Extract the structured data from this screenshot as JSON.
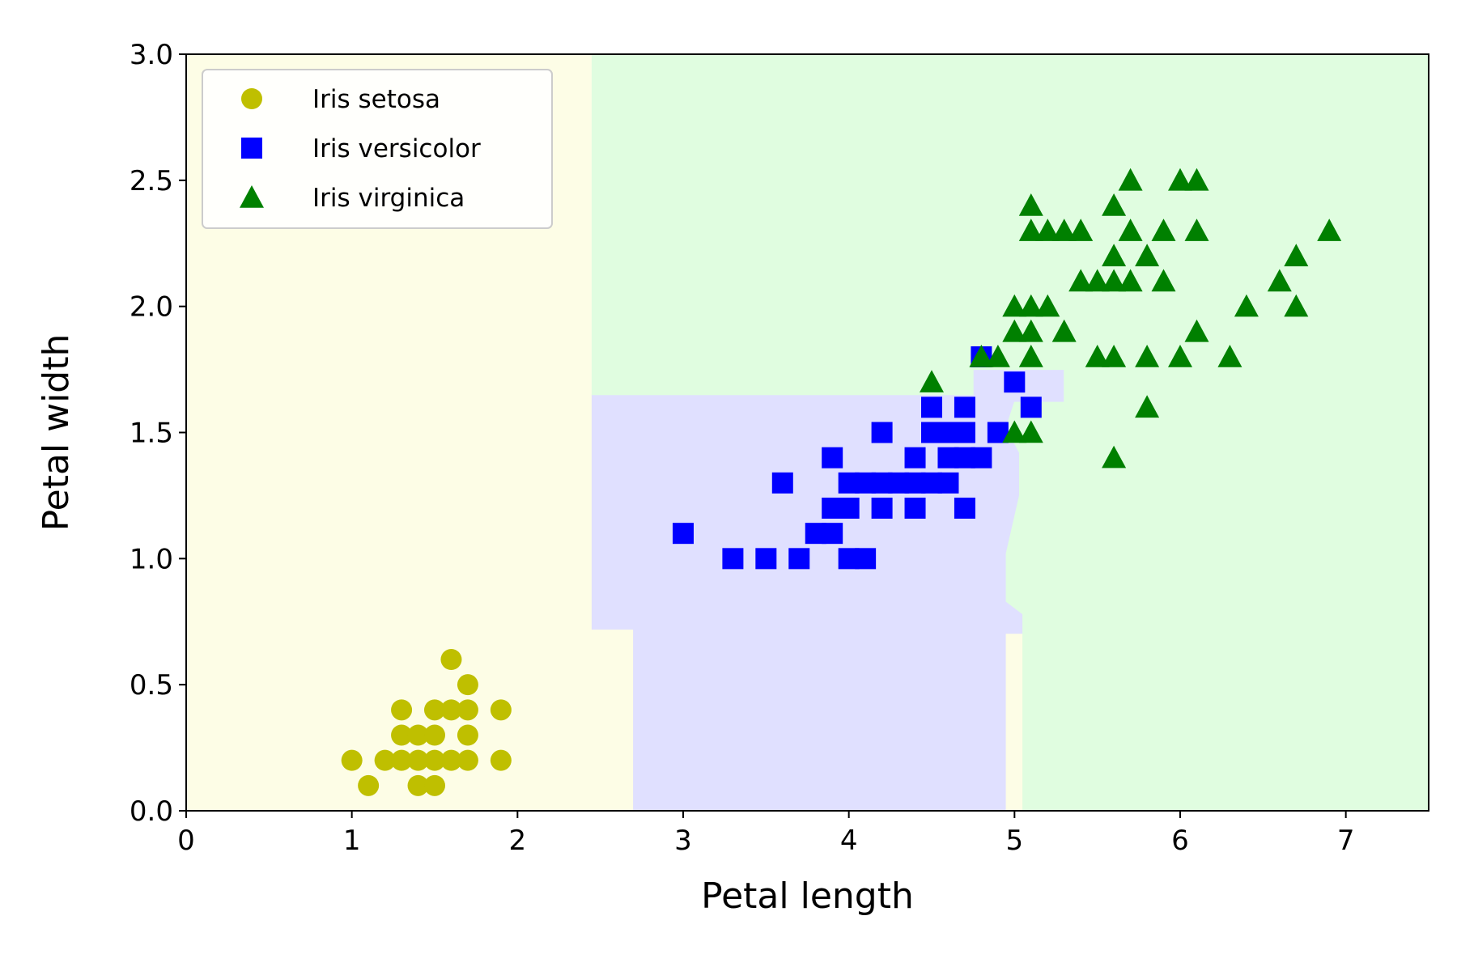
{
  "chart_data": {
    "type": "scatter",
    "title": "",
    "xlabel": "Petal length",
    "ylabel": "Petal width",
    "xlim": [
      0,
      7.5
    ],
    "ylim": [
      0,
      3.0
    ],
    "xticks": [
      0,
      1,
      2,
      3,
      4,
      5,
      6,
      7
    ],
    "yticks": [
      0.0,
      0.5,
      1.0,
      1.5,
      2.0,
      2.5,
      3.0
    ],
    "xtick_labels": [
      "0",
      "1",
      "2",
      "3",
      "4",
      "5",
      "6",
      "7"
    ],
    "ytick_labels": [
      "0.0",
      "0.5",
      "1.0",
      "1.5",
      "2.0",
      "2.5",
      "3.0"
    ],
    "grid": false,
    "legend_position": "top-left",
    "series": [
      {
        "name": "Iris setosa",
        "marker": "circle",
        "color": "#bfbf00",
        "points": [
          [
            1.0,
            0.2
          ],
          [
            1.1,
            0.1
          ],
          [
            1.2,
            0.2
          ],
          [
            1.3,
            0.2
          ],
          [
            1.3,
            0.3
          ],
          [
            1.3,
            0.4
          ],
          [
            1.4,
            0.1
          ],
          [
            1.4,
            0.2
          ],
          [
            1.4,
            0.3
          ],
          [
            1.5,
            0.1
          ],
          [
            1.5,
            0.2
          ],
          [
            1.5,
            0.3
          ],
          [
            1.5,
            0.4
          ],
          [
            1.6,
            0.2
          ],
          [
            1.6,
            0.4
          ],
          [
            1.6,
            0.6
          ],
          [
            1.7,
            0.2
          ],
          [
            1.7,
            0.3
          ],
          [
            1.7,
            0.4
          ],
          [
            1.7,
            0.5
          ],
          [
            1.9,
            0.2
          ],
          [
            1.9,
            0.4
          ]
        ]
      },
      {
        "name": "Iris versicolor",
        "marker": "square",
        "color": "#0000ff",
        "points": [
          [
            3.0,
            1.1
          ],
          [
            3.3,
            1.0
          ],
          [
            3.5,
            1.0
          ],
          [
            3.6,
            1.3
          ],
          [
            3.7,
            1.0
          ],
          [
            3.8,
            1.1
          ],
          [
            3.9,
            1.1
          ],
          [
            3.9,
            1.2
          ],
          [
            3.9,
            1.4
          ],
          [
            4.0,
            1.0
          ],
          [
            4.0,
            1.2
          ],
          [
            4.0,
            1.3
          ],
          [
            4.1,
            1.0
          ],
          [
            4.1,
            1.3
          ],
          [
            4.2,
            1.2
          ],
          [
            4.2,
            1.3
          ],
          [
            4.2,
            1.5
          ],
          [
            4.3,
            1.3
          ],
          [
            4.4,
            1.2
          ],
          [
            4.4,
            1.3
          ],
          [
            4.4,
            1.4
          ],
          [
            4.5,
            1.3
          ],
          [
            4.5,
            1.5
          ],
          [
            4.5,
            1.6
          ],
          [
            4.6,
            1.3
          ],
          [
            4.6,
            1.4
          ],
          [
            4.6,
            1.5
          ],
          [
            4.7,
            1.2
          ],
          [
            4.7,
            1.4
          ],
          [
            4.7,
            1.5
          ],
          [
            4.7,
            1.6
          ],
          [
            4.8,
            1.4
          ],
          [
            4.8,
            1.8
          ],
          [
            4.9,
            1.5
          ],
          [
            5.0,
            1.7
          ],
          [
            5.1,
            1.6
          ]
        ]
      },
      {
        "name": "Iris virginica",
        "marker": "triangle",
        "color": "#008000",
        "points": [
          [
            4.5,
            1.7
          ],
          [
            4.8,
            1.8
          ],
          [
            4.9,
            1.8
          ],
          [
            5.0,
            1.5
          ],
          [
            5.0,
            1.9
          ],
          [
            5.0,
            2.0
          ],
          [
            5.1,
            1.5
          ],
          [
            5.1,
            1.8
          ],
          [
            5.1,
            1.9
          ],
          [
            5.1,
            2.0
          ],
          [
            5.1,
            2.3
          ],
          [
            5.1,
            2.4
          ],
          [
            5.2,
            2.0
          ],
          [
            5.2,
            2.3
          ],
          [
            5.3,
            1.9
          ],
          [
            5.3,
            2.3
          ],
          [
            5.4,
            2.1
          ],
          [
            5.4,
            2.3
          ],
          [
            5.5,
            1.8
          ],
          [
            5.5,
            2.1
          ],
          [
            5.6,
            1.4
          ],
          [
            5.6,
            1.8
          ],
          [
            5.6,
            2.1
          ],
          [
            5.6,
            2.2
          ],
          [
            5.6,
            2.4
          ],
          [
            5.7,
            2.1
          ],
          [
            5.7,
            2.3
          ],
          [
            5.7,
            2.5
          ],
          [
            5.8,
            1.6
          ],
          [
            5.8,
            1.8
          ],
          [
            5.8,
            2.2
          ],
          [
            5.9,
            2.1
          ],
          [
            5.9,
            2.3
          ],
          [
            6.0,
            1.8
          ],
          [
            6.0,
            2.5
          ],
          [
            6.1,
            1.9
          ],
          [
            6.1,
            2.3
          ],
          [
            6.1,
            2.5
          ],
          [
            6.3,
            1.8
          ],
          [
            6.4,
            2.0
          ],
          [
            6.6,
            2.1
          ],
          [
            6.7,
            2.0
          ],
          [
            6.7,
            2.2
          ],
          [
            6.9,
            2.3
          ]
        ]
      }
    ],
    "decision_regions": [
      {
        "class": "Iris setosa",
        "color": "#fdfde6",
        "polygon": [
          [
            0,
            0
          ],
          [
            2.7,
            0
          ],
          [
            2.7,
            0.72
          ],
          [
            2.45,
            0.72
          ],
          [
            2.45,
            1.65
          ],
          [
            2.45,
            3.0
          ],
          [
            0,
            3.0
          ]
        ]
      },
      {
        "class": "Iris versicolor",
        "color": "#e0e0ff",
        "polygon": [
          [
            2.7,
            0
          ],
          [
            4.95,
            0
          ],
          [
            4.95,
            0.7
          ],
          [
            5.05,
            0.7
          ],
          [
            5.05,
            0.78
          ],
          [
            4.95,
            0.83
          ],
          [
            4.95,
            1.02
          ],
          [
            5.03,
            1.25
          ],
          [
            5.03,
            1.42
          ],
          [
            4.95,
            1.52
          ],
          [
            5.0,
            1.62
          ],
          [
            5.3,
            1.62
          ],
          [
            5.3,
            1.75
          ],
          [
            4.75,
            1.75
          ],
          [
            4.75,
            1.65
          ],
          [
            2.45,
            1.65
          ],
          [
            2.45,
            0.72
          ],
          [
            2.7,
            0.72
          ]
        ]
      },
      {
        "class": "Iris setosa",
        "color": "#fdfde6",
        "polygon": [
          [
            4.95,
            0
          ],
          [
            5.05,
            0
          ],
          [
            5.05,
            0.7
          ],
          [
            4.95,
            0.7
          ]
        ]
      },
      {
        "class": "Iris virginica",
        "color": "#e0fde0",
        "polygon": [
          [
            2.45,
            3.0
          ],
          [
            7.5,
            3.0
          ],
          [
            7.5,
            0
          ],
          [
            5.05,
            0
          ],
          [
            5.05,
            0.7
          ],
          [
            5.05,
            0.78
          ],
          [
            4.95,
            0.83
          ],
          [
            4.95,
            1.02
          ],
          [
            5.03,
            1.25
          ],
          [
            5.03,
            1.42
          ],
          [
            4.95,
            1.52
          ],
          [
            5.0,
            1.62
          ],
          [
            5.3,
            1.62
          ],
          [
            5.3,
            1.75
          ],
          [
            4.75,
            1.75
          ],
          [
            4.75,
            1.65
          ],
          [
            2.45,
            1.65
          ]
        ]
      }
    ]
  }
}
